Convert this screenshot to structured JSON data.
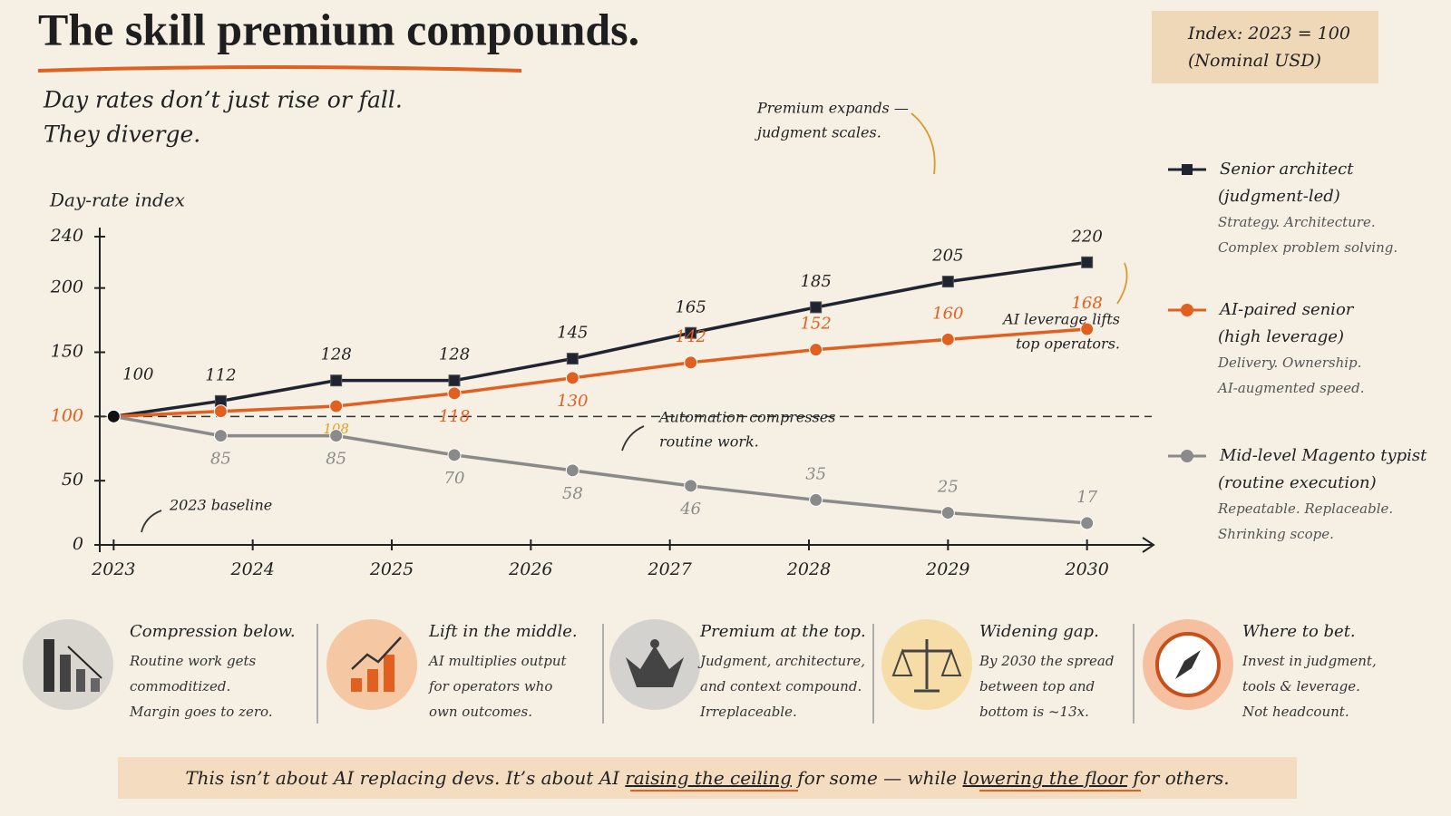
{
  "header": {
    "title": "The skill premium compounds.",
    "subtitle": [
      "Day rates don’t just rise or fall.",
      "They diverge."
    ]
  },
  "index_note": [
    "Index: 2023 = 100",
    "(Nominal USD)"
  ],
  "chart_data": {
    "type": "line",
    "y_label": "Day-rate index",
    "x": [
      2023,
      2023.77,
      2024.6,
      2025.45,
      2026.3,
      2027.15,
      2028.05,
      2029.0,
      2030
    ],
    "xlim": [
      2022.9,
      2030.4
    ],
    "xticks": [
      2023,
      2024,
      2025,
      2026,
      2027,
      2028,
      2029,
      2030
    ],
    "ylim": [
      0,
      240
    ],
    "yticks": [
      0,
      50,
      100,
      150,
      200,
      240
    ],
    "baseline": 100,
    "series": [
      {
        "name": "Senior architect",
        "tag": "(judgment-led)",
        "description": [
          "Strategy. Architecture.",
          "Complex problem solving."
        ],
        "color": "#1f2430",
        "marker": "square",
        "values": [
          100,
          112,
          128,
          128,
          145,
          165,
          185,
          205,
          220
        ],
        "value_labels": [
          "100",
          "112",
          "128",
          "128",
          "145",
          "165",
          "185",
          "205",
          "220"
        ]
      },
      {
        "name": "AI-paired senior",
        "tag": "(high leverage)",
        "description": [
          "Delivery. Ownership.",
          "AI-augmented speed."
        ],
        "color": "#e2601f",
        "marker": "circle",
        "values": [
          100,
          104,
          108,
          118,
          130,
          142,
          152,
          160,
          168
        ],
        "value_labels": [
          null,
          null,
          "108",
          "118",
          "130",
          "142",
          "152",
          "160",
          "168"
        ]
      },
      {
        "name": "Mid-level Magento typist",
        "tag": "(routine execution)",
        "description": [
          "Repeatable. Replaceable.",
          "Shrinking scope."
        ],
        "color": "#8a8a8a",
        "marker": "circle",
        "values": [
          100,
          85,
          85,
          70,
          58,
          46,
          35,
          25,
          17
        ],
        "value_labels": [
          null,
          "85",
          "85",
          "70",
          "58",
          "46",
          "35",
          "25",
          "17"
        ]
      }
    ],
    "annotations": [
      {
        "text": [
          "Premium expands —",
          "judgment scales."
        ]
      },
      {
        "text": [
          "AI leverage lifts",
          "top operators."
        ]
      },
      {
        "text": [
          "Automation compresses",
          "routine work."
        ]
      },
      {
        "text": [
          "2023 baseline"
        ]
      }
    ]
  },
  "panels": [
    {
      "title": "Compression below.",
      "text": [
        "Routine work gets",
        "commoditized.",
        "Margin goes to zero."
      ]
    },
    {
      "title": "Lift in the middle.",
      "text": [
        "AI multiplies output",
        "for operators who",
        "own outcomes."
      ]
    },
    {
      "title": "Premium at the top.",
      "text": [
        "Judgment, architecture,",
        "and context compound.",
        "Irreplaceable."
      ]
    },
    {
      "title": "Widening gap.",
      "text": [
        "By 2030 the spread",
        "between top and",
        "bottom is ~13x."
      ]
    },
    {
      "title": "Where to bet.",
      "text": [
        "Invest in judgment,",
        "tools & leverage.",
        "Not headcount."
      ]
    }
  ],
  "footer": [
    "This isn’t about AI replacing devs. It’s about AI ",
    "raising the ceiling",
    " for some — while ",
    "lowering the floor",
    " for others."
  ]
}
